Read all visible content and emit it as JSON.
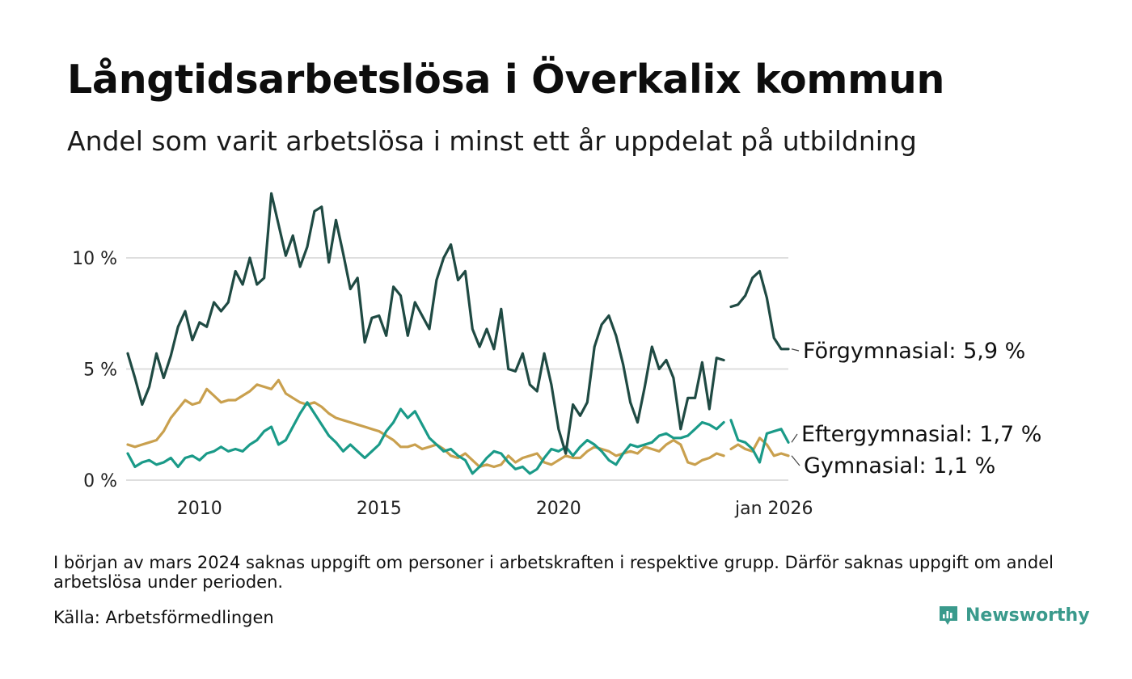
{
  "title": "Långtidsarbetslösa i Överkalix kommun",
  "subtitle": "Andel som varit arbetslösa i minst ett år uppdelat på utbildning",
  "note": "I början av mars 2024 saknas uppgift om personer i arbetskraften i respektive grupp. Därför saknas uppgift om andel arbetslösa under perioden.",
  "source": "Källa: Arbetsförmedlingen",
  "brand": {
    "name": "Newsworthy",
    "icon": "newsworthy-logo-icon"
  },
  "colors": {
    "forgymnasial": "#1f4a43",
    "eftergymnasial": "#1a9a88",
    "gymnasial": "#c9a04e",
    "grid": "#dedede"
  },
  "chart_data": {
    "type": "line",
    "title": "Långtidsarbetslösa i Överkalix kommun",
    "xlabel": "",
    "ylabel": "",
    "x_ticks": [
      {
        "label": "2010",
        "x": 2010
      },
      {
        "label": "2015",
        "x": 2015
      },
      {
        "label": "2020",
        "x": 2020
      },
      {
        "label": "jan 2026",
        "x": 2026
      }
    ],
    "y_ticks": [
      {
        "label": "0 %",
        "y": 0
      },
      {
        "label": "5 %",
        "y": 5
      },
      {
        "label": "10 %",
        "y": 10
      }
    ],
    "xlim": [
      2008.0,
      2026.0
    ],
    "ylim": [
      0,
      13
    ],
    "series": [
      {
        "name": "Förgymnasial",
        "end_label": "Förgymnasial: 5,9 %",
        "color_key": "forgymnasial",
        "points": [
          [
            2008.0,
            5.7
          ],
          [
            2008.2,
            4.6
          ],
          [
            2008.4,
            3.4
          ],
          [
            2008.6,
            4.2
          ],
          [
            2008.8,
            5.7
          ],
          [
            2009.0,
            4.6
          ],
          [
            2009.2,
            5.6
          ],
          [
            2009.4,
            6.9
          ],
          [
            2009.6,
            7.6
          ],
          [
            2009.8,
            6.3
          ],
          [
            2010.0,
            7.1
          ],
          [
            2010.2,
            6.9
          ],
          [
            2010.4,
            8.0
          ],
          [
            2010.6,
            7.6
          ],
          [
            2010.8,
            8.0
          ],
          [
            2011.0,
            9.4
          ],
          [
            2011.2,
            8.8
          ],
          [
            2011.4,
            10.0
          ],
          [
            2011.6,
            8.8
          ],
          [
            2011.8,
            9.1
          ],
          [
            2012.0,
            12.9
          ],
          [
            2012.2,
            11.5
          ],
          [
            2012.4,
            10.1
          ],
          [
            2012.6,
            11.0
          ],
          [
            2012.8,
            9.6
          ],
          [
            2013.0,
            10.5
          ],
          [
            2013.2,
            12.1
          ],
          [
            2013.4,
            12.3
          ],
          [
            2013.6,
            9.8
          ],
          [
            2013.8,
            11.7
          ],
          [
            2014.0,
            10.2
          ],
          [
            2014.2,
            8.6
          ],
          [
            2014.4,
            9.1
          ],
          [
            2014.6,
            6.2
          ],
          [
            2014.8,
            7.3
          ],
          [
            2015.0,
            7.4
          ],
          [
            2015.2,
            6.5
          ],
          [
            2015.4,
            8.7
          ],
          [
            2015.6,
            8.3
          ],
          [
            2015.8,
            6.5
          ],
          [
            2016.0,
            8.0
          ],
          [
            2016.2,
            7.4
          ],
          [
            2016.4,
            6.8
          ],
          [
            2016.6,
            9.0
          ],
          [
            2016.8,
            10.0
          ],
          [
            2017.0,
            10.6
          ],
          [
            2017.2,
            9.0
          ],
          [
            2017.4,
            9.4
          ],
          [
            2017.6,
            6.8
          ],
          [
            2017.8,
            6.0
          ],
          [
            2018.0,
            6.8
          ],
          [
            2018.2,
            5.9
          ],
          [
            2018.4,
            7.7
          ],
          [
            2018.6,
            5.0
          ],
          [
            2018.8,
            4.9
          ],
          [
            2019.0,
            5.7
          ],
          [
            2019.2,
            4.3
          ],
          [
            2019.4,
            4.0
          ],
          [
            2019.6,
            5.7
          ],
          [
            2019.8,
            4.3
          ],
          [
            2020.0,
            2.3
          ],
          [
            2020.2,
            1.2
          ],
          [
            2020.4,
            3.4
          ],
          [
            2020.6,
            2.9
          ],
          [
            2020.8,
            3.5
          ],
          [
            2021.0,
            6.0
          ],
          [
            2021.2,
            7.0
          ],
          [
            2021.4,
            7.4
          ],
          [
            2021.6,
            6.5
          ],
          [
            2021.8,
            5.2
          ],
          [
            2022.0,
            3.5
          ],
          [
            2022.2,
            2.6
          ],
          [
            2022.4,
            4.2
          ],
          [
            2022.6,
            6.0
          ],
          [
            2022.8,
            5.0
          ],
          [
            2023.0,
            5.4
          ],
          [
            2023.2,
            4.6
          ],
          [
            2023.4,
            2.3
          ],
          [
            2023.6,
            3.7
          ],
          [
            2023.8,
            3.7
          ],
          [
            2024.0,
            5.3
          ],
          [
            2024.2,
            3.2
          ],
          [
            2024.4,
            5.5
          ],
          [
            2024.6,
            5.4
          ],
          null,
          [
            2024.8,
            7.8
          ],
          [
            2025.0,
            7.9
          ],
          [
            2025.2,
            8.3
          ],
          [
            2025.4,
            9.1
          ],
          [
            2025.6,
            9.4
          ],
          [
            2025.8,
            8.2
          ],
          [
            2026.0,
            6.4
          ],
          [
            2026.2,
            5.9
          ],
          [
            2026.4,
            5.9
          ]
        ]
      },
      {
        "name": "Eftergymnasial",
        "end_label": "Eftergymnasial: 1,7 %",
        "color_key": "eftergymnasial",
        "points": [
          [
            2008.0,
            1.2
          ],
          [
            2008.2,
            0.6
          ],
          [
            2008.4,
            0.8
          ],
          [
            2008.6,
            0.9
          ],
          [
            2008.8,
            0.7
          ],
          [
            2009.0,
            0.8
          ],
          [
            2009.2,
            1.0
          ],
          [
            2009.4,
            0.6
          ],
          [
            2009.6,
            1.0
          ],
          [
            2009.8,
            1.1
          ],
          [
            2010.0,
            0.9
          ],
          [
            2010.2,
            1.2
          ],
          [
            2010.4,
            1.3
          ],
          [
            2010.6,
            1.5
          ],
          [
            2010.8,
            1.3
          ],
          [
            2011.0,
            1.4
          ],
          [
            2011.2,
            1.3
          ],
          [
            2011.4,
            1.6
          ],
          [
            2011.6,
            1.8
          ],
          [
            2011.8,
            2.2
          ],
          [
            2012.0,
            2.4
          ],
          [
            2012.2,
            1.6
          ],
          [
            2012.4,
            1.8
          ],
          [
            2012.6,
            2.4
          ],
          [
            2012.8,
            3.0
          ],
          [
            2013.0,
            3.5
          ],
          [
            2013.2,
            3.0
          ],
          [
            2013.4,
            2.5
          ],
          [
            2013.6,
            2.0
          ],
          [
            2013.8,
            1.7
          ],
          [
            2014.0,
            1.3
          ],
          [
            2014.2,
            1.6
          ],
          [
            2014.4,
            1.3
          ],
          [
            2014.6,
            1.0
          ],
          [
            2014.8,
            1.3
          ],
          [
            2015.0,
            1.6
          ],
          [
            2015.2,
            2.2
          ],
          [
            2015.4,
            2.6
          ],
          [
            2015.6,
            3.2
          ],
          [
            2015.8,
            2.8
          ],
          [
            2016.0,
            3.1
          ],
          [
            2016.2,
            2.5
          ],
          [
            2016.4,
            1.9
          ],
          [
            2016.6,
            1.6
          ],
          [
            2016.8,
            1.3
          ],
          [
            2017.0,
            1.4
          ],
          [
            2017.2,
            1.1
          ],
          [
            2017.4,
            0.9
          ],
          [
            2017.6,
            0.3
          ],
          [
            2017.8,
            0.6
          ],
          [
            2018.0,
            1.0
          ],
          [
            2018.2,
            1.3
          ],
          [
            2018.4,
            1.2
          ],
          [
            2018.6,
            0.8
          ],
          [
            2018.8,
            0.5
          ],
          [
            2019.0,
            0.6
          ],
          [
            2019.2,
            0.3
          ],
          [
            2019.4,
            0.5
          ],
          [
            2019.6,
            1.0
          ],
          [
            2019.8,
            1.4
          ],
          [
            2020.0,
            1.3
          ],
          [
            2020.2,
            1.5
          ],
          [
            2020.4,
            1.1
          ],
          [
            2020.6,
            1.5
          ],
          [
            2020.8,
            1.8
          ],
          [
            2021.0,
            1.6
          ],
          [
            2021.2,
            1.3
          ],
          [
            2021.4,
            0.9
          ],
          [
            2021.6,
            0.7
          ],
          [
            2021.8,
            1.2
          ],
          [
            2022.0,
            1.6
          ],
          [
            2022.2,
            1.5
          ],
          [
            2022.4,
            1.6
          ],
          [
            2022.6,
            1.7
          ],
          [
            2022.8,
            2.0
          ],
          [
            2023.0,
            2.1
          ],
          [
            2023.2,
            1.9
          ],
          [
            2023.4,
            1.9
          ],
          [
            2023.6,
            2.0
          ],
          [
            2023.8,
            2.3
          ],
          [
            2024.0,
            2.6
          ],
          [
            2024.2,
            2.5
          ],
          [
            2024.4,
            2.3
          ],
          [
            2024.6,
            2.6
          ],
          null,
          [
            2024.8,
            2.7
          ],
          [
            2025.0,
            1.8
          ],
          [
            2025.2,
            1.7
          ],
          [
            2025.4,
            1.4
          ],
          [
            2025.6,
            0.8
          ],
          [
            2025.8,
            2.1
          ],
          [
            2026.0,
            2.2
          ],
          [
            2026.2,
            2.3
          ],
          [
            2026.4,
            1.7
          ]
        ]
      },
      {
        "name": "Gymnasial",
        "end_label": "Gymnasial: 1,1 %",
        "color_key": "gymnasial",
        "points": [
          [
            2008.0,
            1.6
          ],
          [
            2008.2,
            1.5
          ],
          [
            2008.4,
            1.6
          ],
          [
            2008.6,
            1.7
          ],
          [
            2008.8,
            1.8
          ],
          [
            2009.0,
            2.2
          ],
          [
            2009.2,
            2.8
          ],
          [
            2009.4,
            3.2
          ],
          [
            2009.6,
            3.6
          ],
          [
            2009.8,
            3.4
          ],
          [
            2010.0,
            3.5
          ],
          [
            2010.2,
            4.1
          ],
          [
            2010.4,
            3.8
          ],
          [
            2010.6,
            3.5
          ],
          [
            2010.8,
            3.6
          ],
          [
            2011.0,
            3.6
          ],
          [
            2011.2,
            3.8
          ],
          [
            2011.4,
            4.0
          ],
          [
            2011.6,
            4.3
          ],
          [
            2011.8,
            4.2
          ],
          [
            2012.0,
            4.1
          ],
          [
            2012.2,
            4.5
          ],
          [
            2012.4,
            3.9
          ],
          [
            2012.6,
            3.7
          ],
          [
            2012.8,
            3.5
          ],
          [
            2013.0,
            3.4
          ],
          [
            2013.2,
            3.5
          ],
          [
            2013.4,
            3.3
          ],
          [
            2013.6,
            3.0
          ],
          [
            2013.8,
            2.8
          ],
          [
            2014.0,
            2.7
          ],
          [
            2014.2,
            2.6
          ],
          [
            2014.4,
            2.5
          ],
          [
            2014.6,
            2.4
          ],
          [
            2014.8,
            2.3
          ],
          [
            2015.0,
            2.2
          ],
          [
            2015.2,
            2.0
          ],
          [
            2015.4,
            1.8
          ],
          [
            2015.6,
            1.5
          ],
          [
            2015.8,
            1.5
          ],
          [
            2016.0,
            1.6
          ],
          [
            2016.2,
            1.4
          ],
          [
            2016.4,
            1.5
          ],
          [
            2016.6,
            1.6
          ],
          [
            2016.8,
            1.4
          ],
          [
            2017.0,
            1.1
          ],
          [
            2017.2,
            1.0
          ],
          [
            2017.4,
            1.2
          ],
          [
            2017.6,
            0.9
          ],
          [
            2017.8,
            0.6
          ],
          [
            2018.0,
            0.7
          ],
          [
            2018.2,
            0.6
          ],
          [
            2018.4,
            0.7
          ],
          [
            2018.6,
            1.1
          ],
          [
            2018.8,
            0.8
          ],
          [
            2019.0,
            1.0
          ],
          [
            2019.2,
            1.1
          ],
          [
            2019.4,
            1.2
          ],
          [
            2019.6,
            0.8
          ],
          [
            2019.8,
            0.7
          ],
          [
            2020.0,
            0.9
          ],
          [
            2020.2,
            1.1
          ],
          [
            2020.4,
            1.0
          ],
          [
            2020.6,
            1.0
          ],
          [
            2020.8,
            1.3
          ],
          [
            2021.0,
            1.5
          ],
          [
            2021.2,
            1.4
          ],
          [
            2021.4,
            1.3
          ],
          [
            2021.6,
            1.1
          ],
          [
            2021.8,
            1.2
          ],
          [
            2022.0,
            1.3
          ],
          [
            2022.2,
            1.2
          ],
          [
            2022.4,
            1.5
          ],
          [
            2022.6,
            1.4
          ],
          [
            2022.8,
            1.3
          ],
          [
            2023.0,
            1.6
          ],
          [
            2023.2,
            1.8
          ],
          [
            2023.4,
            1.6
          ],
          [
            2023.6,
            0.8
          ],
          [
            2023.8,
            0.7
          ],
          [
            2024.0,
            0.9
          ],
          [
            2024.2,
            1.0
          ],
          [
            2024.4,
            1.2
          ],
          [
            2024.6,
            1.1
          ],
          null,
          [
            2024.8,
            1.4
          ],
          [
            2025.0,
            1.6
          ],
          [
            2025.2,
            1.4
          ],
          [
            2025.4,
            1.3
          ],
          [
            2025.6,
            1.9
          ],
          [
            2025.8,
            1.6
          ],
          [
            2026.0,
            1.1
          ],
          [
            2026.2,
            1.2
          ],
          [
            2026.4,
            1.1
          ]
        ]
      }
    ]
  }
}
